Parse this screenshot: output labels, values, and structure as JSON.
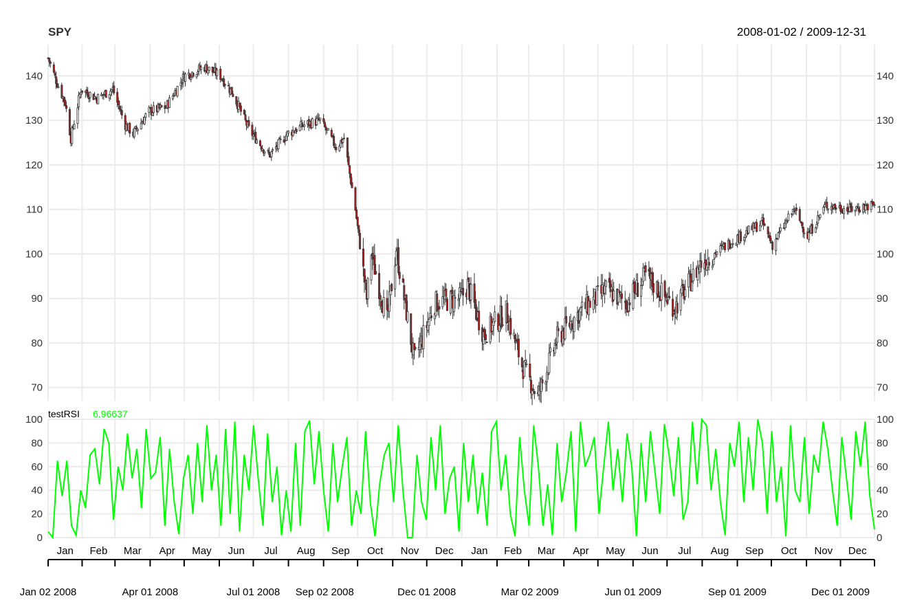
{
  "chart_data": {
    "type": "candlestick",
    "title": "SPY",
    "date_range": "2008-01-02 / 2009-12-31",
    "x_start": "2008-01-02",
    "x_end": "2009-12-31",
    "colors": {
      "up": "#ffffff",
      "down": "#b22222",
      "outline": "#333333",
      "grid": "#ebebeb",
      "indicator": "#00ff00"
    },
    "price_panel": {
      "ylim": [
        67,
        147
      ],
      "yticks": [
        70,
        80,
        90,
        100,
        110,
        120,
        130,
        140
      ],
      "grid": true,
      "series": [
        {
          "name": "SPY",
          "x": [
            "2008-01-02",
            "2008-01-09",
            "2008-01-17",
            "2008-01-22",
            "2008-01-31",
            "2008-02-14",
            "2008-02-28",
            "2008-03-10",
            "2008-03-17",
            "2008-03-31",
            "2008-04-15",
            "2008-05-01",
            "2008-05-19",
            "2008-06-02",
            "2008-06-13",
            "2008-06-27",
            "2008-07-15",
            "2008-07-31",
            "2008-08-15",
            "2008-08-29",
            "2008-09-12",
            "2008-09-19",
            "2008-09-29",
            "2008-10-09",
            "2008-10-13",
            "2008-10-27",
            "2008-11-04",
            "2008-11-20",
            "2008-12-08",
            "2008-12-31",
            "2009-01-06",
            "2009-01-20",
            "2009-02-09",
            "2009-02-23",
            "2009-03-09",
            "2009-03-26",
            "2009-04-15",
            "2009-05-08",
            "2009-05-26",
            "2009-06-12",
            "2009-07-08",
            "2009-07-31",
            "2009-08-28",
            "2009-09-23",
            "2009-10-02",
            "2009-10-21",
            "2009-11-02",
            "2009-11-18",
            "2009-12-08",
            "2009-12-31"
          ],
          "close": [
            144,
            139,
            134,
            126,
            137,
            135,
            137,
            129,
            127,
            132,
            133,
            140,
            142,
            140,
            136,
            128,
            122,
            127,
            129,
            130,
            124,
            126,
            110,
            90,
            100,
            85,
            101,
            76,
            89,
            90,
            93,
            82,
            87,
            75,
            68,
            81,
            87,
            92,
            89,
            95,
            88,
            98,
            103,
            107,
            102,
            110,
            104,
            111,
            110,
            111
          ]
        }
      ]
    },
    "indicator_panel": {
      "name": "testRSI",
      "last_value": "6.96637",
      "ylim": [
        0,
        100
      ],
      "yticks": [
        0,
        20,
        40,
        60,
        80,
        100
      ],
      "values": [
        5,
        0,
        65,
        35,
        65,
        10,
        2,
        40,
        25,
        70,
        75,
        45,
        92,
        80,
        15,
        60,
        40,
        88,
        50,
        75,
        25,
        92,
        50,
        55,
        85,
        10,
        75,
        30,
        3,
        50,
        70,
        20,
        80,
        30,
        95,
        40,
        70,
        10,
        92,
        20,
        98,
        5,
        70,
        40,
        95,
        50,
        10,
        88,
        30,
        60,
        2,
        40,
        5,
        80,
        10,
        90,
        99,
        45,
        90,
        40,
        5,
        80,
        30,
        60,
        85,
        10,
        40,
        20,
        90,
        30,
        1,
        45,
        70,
        80,
        30,
        95,
        40,
        0,
        0,
        70,
        30,
        15,
        85,
        40,
        95,
        20,
        50,
        60,
        5,
        80,
        30,
        70,
        20,
        55,
        10,
        90,
        98,
        40,
        70,
        20,
        1,
        85,
        40,
        10,
        95,
        60,
        10,
        45,
        2,
        80,
        30,
        55,
        90,
        5,
        98,
        60,
        70,
        85,
        20,
        60,
        98,
        40,
        75,
        30,
        88,
        60,
        1,
        80,
        30,
        90,
        55,
        20,
        96,
        70,
        35,
        85,
        15,
        30,
        98,
        45,
        100,
        95,
        40,
        75,
        30,
        2,
        80,
        60,
        98,
        30,
        85,
        40,
        100,
        80,
        20,
        90,
        30,
        60,
        1,
        95,
        40,
        30,
        85,
        20,
        70,
        55,
        98,
        75,
        40,
        10,
        85,
        50,
        15,
        90,
        60,
        98,
        35,
        7
      ]
    },
    "x_axis": {
      "months": [
        "Jan",
        "Feb",
        "Mar",
        "Apr",
        "May",
        "Jun",
        "Jul",
        "Aug",
        "Sep",
        "Oct",
        "Nov",
        "Dec",
        "Jan",
        "Feb",
        "Mar",
        "Apr",
        "May",
        "Jun",
        "Jul",
        "Aug",
        "Sep",
        "Oct",
        "Nov",
        "Dec"
      ],
      "date_labels": [
        "Jan 02 2008",
        "Apr 01 2008",
        "Jul 01 2008",
        "Sep 02 2008",
        "Dec 01 2008",
        "Mar 02 2009",
        "Jun 01 2009",
        "Sep 01 2009",
        "Dec 01 2009"
      ]
    }
  }
}
